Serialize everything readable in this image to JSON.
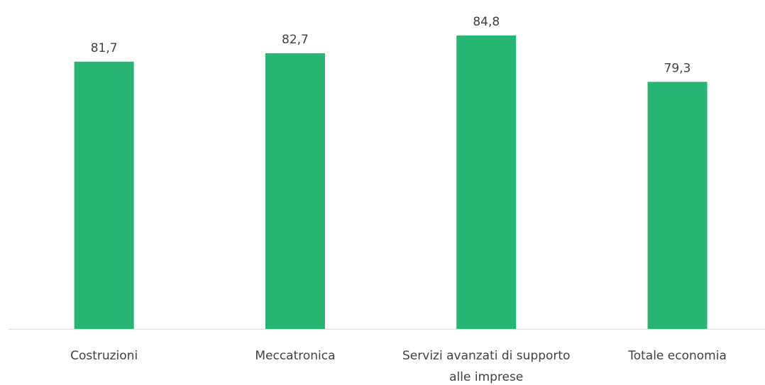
{
  "chart_data": {
    "type": "bar",
    "categories": [
      "Costruzioni",
      "Meccatronica",
      "Servizi avanzati di supporto alle imprese",
      "Totale economia"
    ],
    "values": [
      81.7,
      82.7,
      84.8,
      79.3
    ],
    "value_labels": [
      "81,7",
      "82,7",
      "84,8",
      "79,3"
    ],
    "color": "#27b574",
    "ylim": [
      50,
      88
    ]
  }
}
